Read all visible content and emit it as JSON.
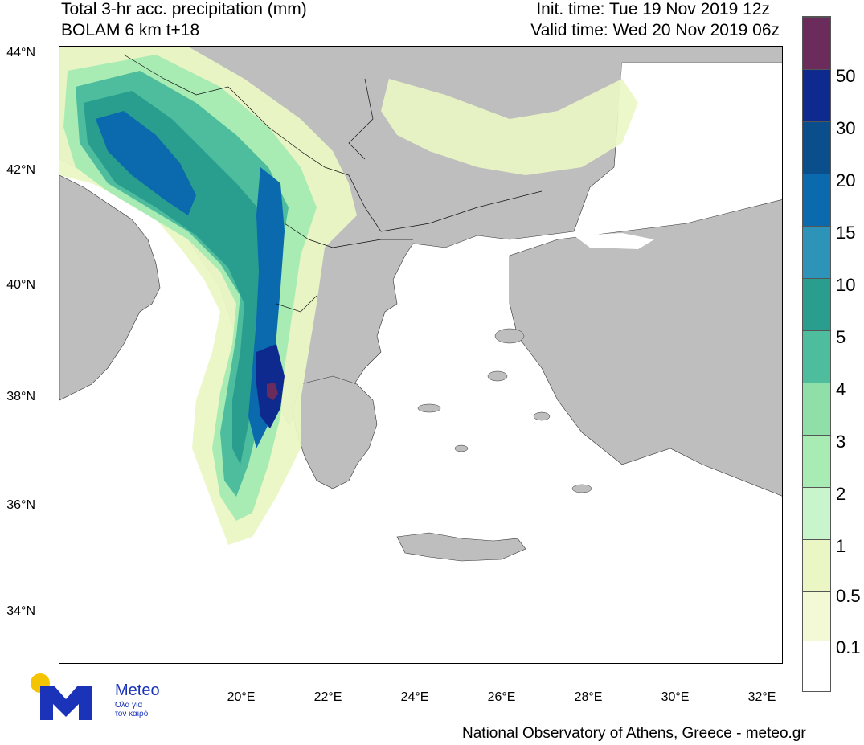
{
  "header": {
    "title_line1": "Total 3-hr acc. precipitation (mm)",
    "title_line2": "BOLAM 6 km t+18",
    "init_time": "Init. time: Tue 19 Nov 2019 12z",
    "valid_time": "Valid time: Wed 20 Nov 2019 06z"
  },
  "axes": {
    "lat_labels": [
      "44°N",
      "42°N",
      "40°N",
      "38°N",
      "36°N",
      "34°N"
    ],
    "lon_labels": [
      "20°E",
      "22°E",
      "24°E",
      "26°E",
      "28°E",
      "30°E",
      "32°E"
    ]
  },
  "colorbar": {
    "labels": [
      "50",
      "30",
      "20",
      "15",
      "10",
      "5",
      "4",
      "3",
      "2",
      "1",
      "0.5",
      "0.1"
    ],
    "colors": [
      "#6b2c5c",
      "#0f2a8f",
      "#0a4e8c",
      "#0a6aad",
      "#2e93b8",
      "#2a9e8e",
      "#4dbd9e",
      "#8ee0a8",
      "#a8ecb4",
      "#c8f5cc",
      "#eaf7c4",
      "#f2f9d4",
      "#ffffff"
    ]
  },
  "land_color": "#bebebe",
  "sea_color": "#ffffff",
  "footer": "National Observatory of Athens, Greece - meteo.gr",
  "logo": {
    "name": "Meteo",
    "tagline_line1": "Όλα για",
    "tagline_line2": "τον καιρό",
    "sun_color": "#f5c400",
    "brand_color": "#1a33b8"
  }
}
